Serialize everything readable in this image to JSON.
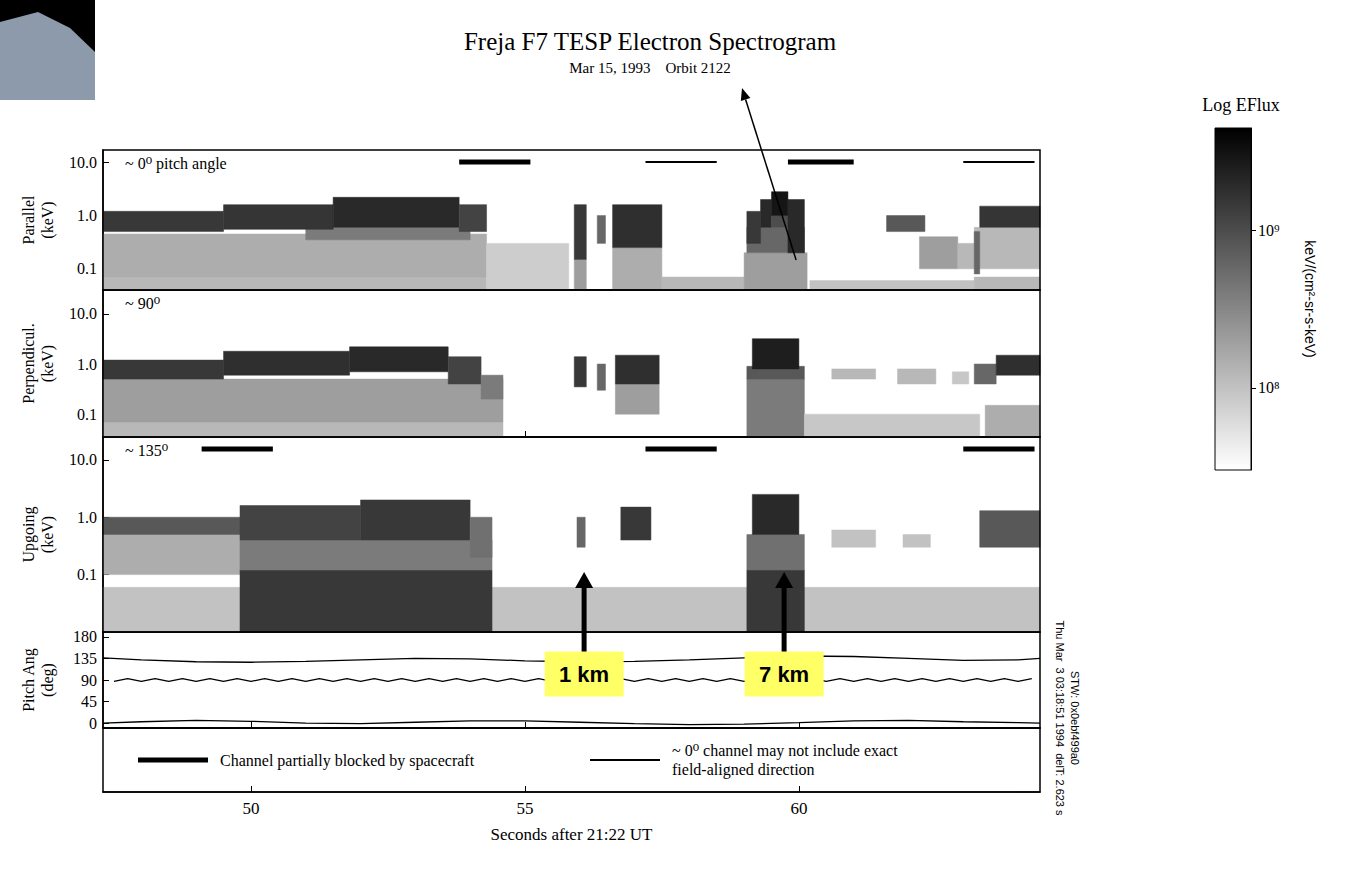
{
  "chart_data": {
    "type": "spectrogram",
    "title": "Freja F7 TESP Electron Spectrogram",
    "subtitle": "Mar 15, 1993    Orbit 2122",
    "xlabel": "Seconds after 21:22 UT",
    "xlim": [
      47.3,
      64.4
    ],
    "xticks": [
      50,
      55,
      60
    ],
    "panels": [
      {
        "type": "heatmap",
        "ylabel": "Parallel (keV)",
        "tag": "~ 0⁰ pitch angle",
        "log": "y",
        "ylim": [
          0.04,
          17
        ],
        "yticks": [
          0.1,
          {
            "value": 1,
            "label": "1.0"
          },
          {
            "value": 10,
            "label": "10.0"
          }
        ],
        "bars": [
          {
            "x": [
              53.8,
              55.1
            ],
            "line_style": "thick"
          },
          {
            "x": [
              57.2,
              58.5
            ],
            "line_style": "thin"
          },
          {
            "x": [
              59.8,
              61.0
            ],
            "line_style": "thick"
          },
          {
            "x": [
              63.0,
              64.3
            ],
            "line_style": "thin"
          }
        ],
        "cells": [
          [
            47.3,
            54.3,
            0.01,
            0.07,
            120000000.0
          ],
          [
            47.3,
            54.3,
            0.07,
            0.45,
            150000000.0
          ],
          [
            51.0,
            54.0,
            0.35,
            0.6,
            400000000.0
          ],
          [
            47.3,
            49.5,
            0.5,
            1.2,
            1500000000.0
          ],
          [
            49.5,
            51.5,
            0.55,
            1.6,
            1600000000.0
          ],
          [
            51.5,
            53.8,
            0.6,
            2.2,
            2000000000.0
          ],
          [
            53.8,
            54.3,
            0.5,
            1.6,
            1200000000.0
          ],
          [
            54.3,
            55.8,
            0.01,
            0.3,
            80000000.0
          ],
          [
            55.9,
            56.12,
            0.01,
            0.15,
            200000000.0
          ],
          [
            55.9,
            56.12,
            0.15,
            1.6,
            1500000000.0
          ],
          [
            56.32,
            56.47,
            0.3,
            1.0,
            600000000.0
          ],
          [
            56.6,
            57.5,
            0.01,
            0.25,
            150000000.0
          ],
          [
            56.6,
            57.5,
            0.25,
            1.6,
            1800000000.0
          ],
          [
            57.5,
            59.0,
            0.01,
            0.07,
            120000000.0
          ],
          [
            59.0,
            60.15,
            0.01,
            0.2,
            200000000.0
          ],
          [
            59.05,
            60.1,
            0.2,
            0.6,
            600000000.0
          ],
          [
            59.05,
            59.3,
            0.3,
            1.2,
            1500000000.0
          ],
          [
            59.3,
            59.5,
            0.6,
            2.0,
            2000000000.0
          ],
          [
            59.5,
            59.8,
            0.6,
            1.0,
            1000000000.0
          ],
          [
            59.5,
            59.8,
            1.0,
            2.8,
            3000000000.0
          ],
          [
            59.8,
            60.1,
            0.2,
            2.0,
            2000000000.0
          ],
          [
            60.2,
            63.2,
            0.01,
            0.06,
            100000000.0
          ],
          [
            61.6,
            62.3,
            0.5,
            1.0,
            800000000.0
          ],
          [
            62.2,
            62.9,
            0.1,
            0.4,
            200000000.0
          ],
          [
            62.9,
            63.2,
            0.1,
            0.3,
            120000000.0
          ],
          [
            63.2,
            64.4,
            0.01,
            0.07,
            120000000.0
          ],
          [
            63.2,
            64.4,
            0.1,
            0.6,
            120000000.0
          ],
          [
            63.2,
            63.3,
            0.08,
            0.5,
            600000000.0
          ],
          [
            63.3,
            64.4,
            0.6,
            1.5,
            1600000000.0
          ]
        ]
      },
      {
        "type": "heatmap",
        "ylabel": "Perpendicul. (keV)",
        "tag": "~ 90⁰",
        "log": "y",
        "ylim": [
          0.035,
          30
        ],
        "yticks": [
          0.1,
          {
            "value": 1,
            "label": "1.0"
          },
          {
            "value": 10,
            "label": "10.0"
          }
        ],
        "cells": [
          [
            47.3,
            54.6,
            0.01,
            0.07,
            120000000.0
          ],
          [
            47.3,
            54.6,
            0.07,
            0.5,
            200000000.0
          ],
          [
            47.3,
            49.5,
            0.5,
            1.2,
            1500000000.0
          ],
          [
            49.5,
            51.8,
            0.6,
            1.8,
            1800000000.0
          ],
          [
            51.8,
            53.6,
            0.7,
            2.2,
            2000000000.0
          ],
          [
            53.6,
            54.2,
            0.4,
            1.4,
            1200000000.0
          ],
          [
            54.2,
            54.6,
            0.2,
            0.6,
            400000000.0
          ],
          [
            55.9,
            56.12,
            0.35,
            1.4,
            1500000000.0
          ],
          [
            56.32,
            56.47,
            0.3,
            1.0,
            600000000.0
          ],
          [
            56.65,
            57.45,
            0.1,
            0.4,
            200000000.0
          ],
          [
            56.65,
            57.45,
            0.4,
            1.5,
            1800000000.0
          ],
          [
            59.05,
            60.1,
            0.01,
            0.5,
            400000000.0
          ],
          [
            59.05,
            60.1,
            0.5,
            0.9,
            800000000.0
          ],
          [
            59.15,
            60.0,
            0.8,
            3.2,
            2500000000.0
          ],
          [
            60.1,
            63.3,
            0.01,
            0.1,
            90000000.0
          ],
          [
            60.6,
            61.4,
            0.5,
            0.8,
            120000000.0
          ],
          [
            61.8,
            62.5,
            0.4,
            0.8,
            120000000.0
          ],
          [
            62.8,
            63.1,
            0.4,
            0.7,
            90000000.0
          ],
          [
            63.4,
            64.4,
            0.01,
            0.15,
            150000000.0
          ],
          [
            63.2,
            63.6,
            0.4,
            1.0,
            600000000.0
          ],
          [
            63.6,
            64.4,
            0.6,
            1.5,
            1800000000.0
          ]
        ]
      },
      {
        "type": "heatmap",
        "ylabel": "Upgoing (keV)",
        "tag": "~ 135⁰",
        "log": "y",
        "ylim": [
          0.01,
          25
        ],
        "yticks": [
          0.1,
          {
            "value": 1,
            "label": "1.0"
          },
          {
            "value": 10,
            "label": "10.0"
          }
        ],
        "bars": [
          {
            "x": [
              49.1,
              50.4
            ],
            "line_style": "thick"
          },
          {
            "x": [
              57.2,
              58.5
            ],
            "line_style": "thick"
          },
          {
            "x": [
              63.0,
              64.3
            ],
            "line_style": "thick"
          }
        ],
        "cells": [
          [
            47.3,
            64.4,
            0.01,
            0.06,
            100000000.0
          ],
          [
            47.3,
            49.8,
            0.1,
            0.5,
            150000000.0
          ],
          [
            47.3,
            49.8,
            0.5,
            1.0,
            800000000.0
          ],
          [
            49.8,
            54.4,
            0.01,
            0.12,
            1500000000.0
          ],
          [
            49.8,
            54.4,
            0.12,
            0.4,
            400000000.0
          ],
          [
            49.8,
            52.0,
            0.4,
            1.6,
            1200000000.0
          ],
          [
            52.0,
            54.0,
            0.4,
            2.0,
            1500000000.0
          ],
          [
            54.0,
            54.4,
            0.2,
            1.0,
            500000000.0
          ],
          [
            55.95,
            56.1,
            0.3,
            1.0,
            600000000.0
          ],
          [
            56.75,
            57.3,
            0.4,
            1.5,
            1500000000.0
          ],
          [
            59.05,
            60.1,
            0.01,
            0.12,
            1500000000.0
          ],
          [
            59.05,
            60.1,
            0.12,
            0.5,
            500000000.0
          ],
          [
            59.15,
            60.0,
            0.5,
            2.5,
            2000000000.0
          ],
          [
            60.6,
            61.4,
            0.3,
            0.6,
            100000000.0
          ],
          [
            61.9,
            62.4,
            0.3,
            0.5,
            100000000.0
          ],
          [
            63.3,
            64.4,
            0.3,
            1.3,
            800000000.0
          ]
        ]
      },
      {
        "type": "line",
        "ylabel": "Pitch Ang (deg)",
        "ylim": [
          -10,
          190
        ],
        "yticks": [
          0,
          45,
          90,
          135,
          180
        ],
        "series": [
          {
            "color": "#000000",
            "x": [
              47.3,
              48,
              49,
              50,
              51,
              52,
              53,
              54,
              55,
              56,
              57,
              58,
              59,
              60,
              61,
              62,
              63,
              64,
              64.4
            ],
            "values": [
              136,
              132,
              128,
              127,
              129,
              132,
              135,
              134,
              130,
              128,
              129,
              132,
              136,
              140,
              139,
              135,
              131,
              132,
              135
            ]
          },
          {
            "color": "#000000",
            "x": [
              47.5,
              47.75,
              48,
              48.25,
              48.5,
              48.75,
              49,
              49.25,
              49.5,
              49.75,
              50,
              50.25,
              50.5,
              50.75,
              51,
              51.25,
              51.5,
              51.75,
              52,
              52.25,
              52.5,
              52.75,
              53,
              53.25,
              53.5,
              53.75,
              54,
              54.25,
              54.5,
              54.75,
              55,
              55.25,
              55.5,
              55.75,
              56,
              56.25,
              56.5,
              56.75,
              57,
              57.25,
              57.5,
              57.75,
              58,
              58.25,
              58.5,
              58.75,
              59,
              59.25,
              59.5,
              59.75,
              60,
              60.25,
              60.5,
              60.75,
              61,
              61.25,
              61.5,
              61.75,
              62,
              62.25,
              62.5,
              62.75,
              63,
              63.25,
              63.5,
              63.75,
              64,
              64.25
            ],
            "values": [
              87,
              93,
              87,
              93,
              87,
              93,
              87,
              93,
              87,
              93,
              87,
              93,
              87,
              93,
              87,
              93,
              87,
              93,
              87,
              93,
              87,
              93,
              87,
              93,
              87,
              93,
              87,
              93,
              87,
              93,
              87,
              93,
              87,
              93,
              87,
              93,
              87,
              93,
              87,
              93,
              87,
              93,
              87,
              93,
              87,
              93,
              87,
              93,
              87,
              93,
              87,
              93,
              87,
              93,
              87,
              93,
              87,
              93,
              87,
              93,
              87,
              93,
              87,
              93,
              87,
              93,
              87,
              93
            ]
          },
          {
            "color": "#000000",
            "x": [
              47.3,
              48,
              49,
              50,
              51,
              52,
              53,
              54,
              55,
              56,
              57,
              58,
              59,
              60,
              61,
              62,
              63,
              64,
              64.4
            ],
            "values": [
              0,
              3,
              6,
              4,
              0,
              -1,
              2,
              5,
              5,
              2,
              -1,
              -3,
              -2,
              1,
              5,
              6,
              3,
              1,
              0
            ]
          }
        ]
      }
    ],
    "colorbar": {
      "title": "Log EFlux",
      "label": "keV/(cm²-sr-s-keV)",
      "log": true,
      "range": [
        30000000.0,
        4500000000.0
      ],
      "ticks": [
        {
          "value": 100000000.0,
          "label": "10⁸"
        },
        {
          "value": 1000000000.0,
          "label": "10⁹"
        }
      ],
      "colors": [
        "#ffffff",
        "#000000"
      ]
    },
    "key": [
      {
        "line_style": "thick",
        "label": "Channel partially blocked by spacecraft"
      },
      {
        "line_style": "thin",
        "label": "~ 0⁰ channel may not include exact field-aligned direction"
      }
    ],
    "annotations": [
      {
        "text": "1 km",
        "x": 56.08
      },
      {
        "text": "7 km",
        "x": 59.73
      }
    ],
    "side_text": [
      "Thu Mar  3 03:18:51 1994  delT: 2.623 s",
      "STW: 0x0ebf499a0"
    ]
  }
}
